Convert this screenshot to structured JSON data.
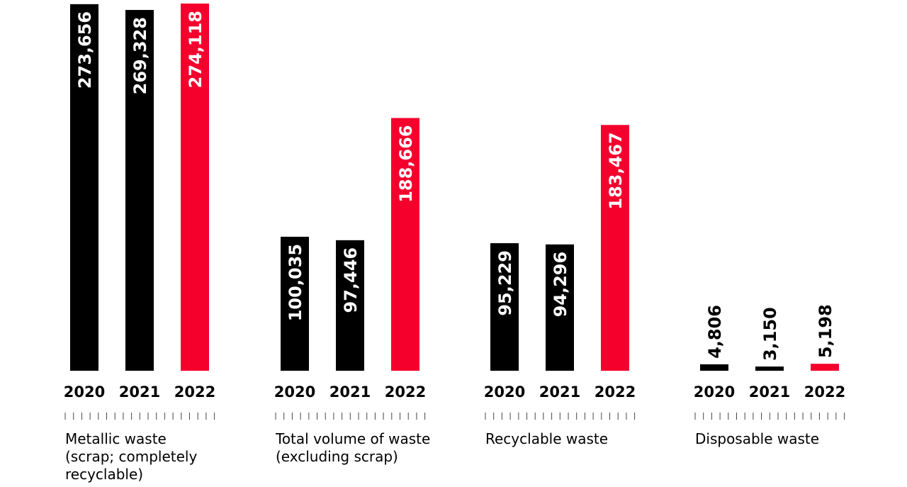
{
  "chart_data": {
    "type": "bar",
    "groups": [
      {
        "label_lines": [
          "Metallic waste",
          "(scrap; completely",
          "recyclable)"
        ],
        "years": [
          "2020",
          "2021",
          "2022"
        ],
        "values": [
          273656,
          269328,
          274118
        ],
        "value_labels": [
          "273,656",
          "269,328",
          "274,118"
        ]
      },
      {
        "label_lines": [
          "Total volume of waste",
          "(excluding scrap)"
        ],
        "years": [
          "2020",
          "2021",
          "2022"
        ],
        "values": [
          100035,
          97446,
          188666
        ],
        "value_labels": [
          "100,035",
          "97,446",
          "188,666"
        ]
      },
      {
        "label_lines": [
          "Recyclable waste"
        ],
        "years": [
          "2020",
          "2021",
          "2022"
        ],
        "values": [
          95229,
          94296,
          183467
        ],
        "value_labels": [
          "95,229",
          "94,296",
          "183,467"
        ]
      },
      {
        "label_lines": [
          "Disposable waste"
        ],
        "years": [
          "2020",
          "2021",
          "2022"
        ],
        "values": [
          4806,
          3150,
          5198
        ],
        "value_labels": [
          "4,806",
          "3,150",
          "5,198"
        ]
      }
    ],
    "colors": {
      "past": "#000000",
      "current": "#f5002d",
      "bar_text": "#ffffff",
      "axis_text": "#000000"
    },
    "ylim": [
      0,
      274118
    ],
    "grid": false,
    "legend": "none"
  }
}
